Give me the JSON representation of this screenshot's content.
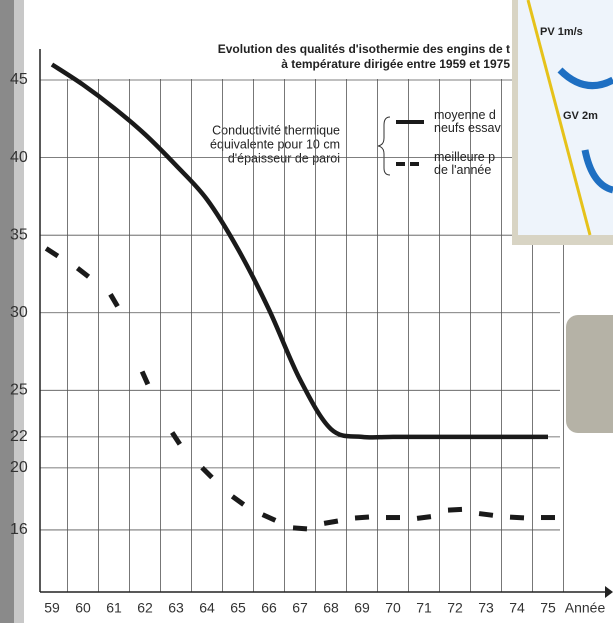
{
  "chart_data": {
    "type": "line",
    "title": [
      "Evolution des qualités d'isothermie des engins de t",
      "à température dirigée entre 1959 et 1975"
    ],
    "annotation": [
      "Conductivité thermique",
      "équivalente pour 10 cm",
      "d'épaisseur de paroi"
    ],
    "xlabel": "Année",
    "categories": [
      "59",
      "60",
      "61",
      "62",
      "63",
      "64",
      "65",
      "66",
      "67",
      "68",
      "69",
      "70",
      "71",
      "72",
      "73",
      "74",
      "75"
    ],
    "series": [
      {
        "name": "moyenne d\nneufs essav",
        "color": "#1a1a1a",
        "style": "solid",
        "values": [
          46,
          44.7,
          43.2,
          41.5,
          39.5,
          37.3,
          34.1,
          30.2,
          25.7,
          22.5,
          22,
          22,
          22,
          22,
          22,
          22,
          22
        ]
      },
      {
        "name": "meilleure p\nde l'année",
        "color": "#1a1a1a",
        "style": "dashed",
        "values": [
          33.9,
          32.6,
          30.8,
          25.8,
          21.9,
          19.7,
          17.9,
          16.8,
          16.1,
          16.5,
          16.8,
          16.8,
          16.8,
          17.3,
          17,
          16.8,
          16.8
        ]
      }
    ],
    "ylim": [
      12,
      47
    ],
    "yticks": [
      45,
      40,
      35,
      30,
      25,
      22,
      20,
      16
    ],
    "grid": true
  },
  "inset": {
    "labels": [
      "PV 1m/s",
      "GV 2m"
    ]
  }
}
